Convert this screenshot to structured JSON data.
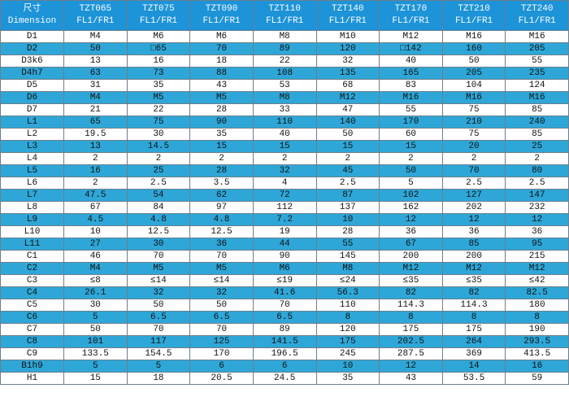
{
  "header": [
    [
      "尺寸",
      "Dimension"
    ],
    [
      "TZT065",
      "FL1/FR1"
    ],
    [
      "TZT075",
      "FL1/FR1"
    ],
    [
      "TZT090",
      "FL1/FR1"
    ],
    [
      "TZT110",
      "FL1/FR1"
    ],
    [
      "TZT140",
      "FL1/FR1"
    ],
    [
      "TZT170",
      "FL1/FR1"
    ],
    [
      "TZT210",
      "FL1/FR1"
    ],
    [
      "TZT240",
      "FL1/FR1"
    ]
  ],
  "rows": [
    [
      "D1",
      "M4",
      "M6",
      "M6",
      "M8",
      "M10",
      "M12",
      "M16",
      "M16"
    ],
    [
      "D2",
      "50",
      "□65",
      "70",
      "89",
      "120",
      "□142",
      "160",
      "205"
    ],
    [
      "D3k6",
      "13",
      "16",
      "18",
      "22",
      "32",
      "40",
      "50",
      "55"
    ],
    [
      "D4h7",
      "63",
      "73",
      "88",
      "108",
      "135",
      "165",
      "205",
      "235"
    ],
    [
      "D5",
      "31",
      "35",
      "43",
      "53",
      "68",
      "83",
      "104",
      "124"
    ],
    [
      "D6",
      "M4",
      "M5",
      "M5",
      "M8",
      "M12",
      "M16",
      "M16",
      "M16"
    ],
    [
      "D7",
      "21",
      "22",
      "28",
      "33",
      "47",
      "55",
      "75",
      "85"
    ],
    [
      "L1",
      "65",
      "75",
      "90",
      "110",
      "140",
      "170",
      "210",
      "240"
    ],
    [
      "L2",
      "19.5",
      "30",
      "35",
      "40",
      "50",
      "60",
      "75",
      "85"
    ],
    [
      "L3",
      "13",
      "14.5",
      "15",
      "15",
      "15",
      "15",
      "20",
      "25"
    ],
    [
      "L4",
      "2",
      "2",
      "2",
      "2",
      "2",
      "2",
      "2",
      "2"
    ],
    [
      "L5",
      "16",
      "25",
      "28",
      "32",
      "45",
      "50",
      "70",
      "80"
    ],
    [
      "L6",
      "2",
      "2.5",
      "3.5",
      "4",
      "2.5",
      "5",
      "2.5",
      "2.5"
    ],
    [
      "L7",
      "47.5",
      "54",
      "62",
      "72",
      "87",
      "102",
      "127",
      "147"
    ],
    [
      "L8",
      "67",
      "84",
      "97",
      "112",
      "137",
      "162",
      "202",
      "232"
    ],
    [
      "L9",
      "4.5",
      "4.8",
      "4.8",
      "7.2",
      "10",
      "12",
      "12",
      "12"
    ],
    [
      "L10",
      "10",
      "12.5",
      "12.5",
      "19",
      "28",
      "36",
      "36",
      "36"
    ],
    [
      "L11",
      "27",
      "30",
      "36",
      "44",
      "55",
      "67",
      "85",
      "95"
    ],
    [
      "C1",
      "46",
      "70",
      "70",
      "90",
      "145",
      "200",
      "200",
      "215"
    ],
    [
      "C2",
      "M4",
      "M5",
      "M5",
      "M6",
      "M8",
      "M12",
      "M12",
      "M12"
    ],
    [
      "C3",
      "≤8",
      "≤14",
      "≤14",
      "≤19",
      "≤24",
      "≤35",
      "≤35",
      "≤42"
    ],
    [
      "C4",
      "26.1",
      "32",
      "32",
      "41.6",
      "56.3",
      "82",
      "82",
      "82.5"
    ],
    [
      "C5",
      "30",
      "50",
      "50",
      "70",
      "110",
      "114.3",
      "114.3",
      "180"
    ],
    [
      "C6",
      "5",
      "6.5",
      "6.5",
      "6.5",
      "8",
      "8",
      "8",
      "8"
    ],
    [
      "C7",
      "50",
      "70",
      "70",
      "89",
      "120",
      "175",
      "175",
      "190"
    ],
    [
      "C8",
      "101",
      "117",
      "125",
      "141.5",
      "175",
      "202.5",
      "264",
      "293.5"
    ],
    [
      "C9",
      "133.5",
      "154.5",
      "170",
      "196.5",
      "245",
      "287.5",
      "369",
      "413.5"
    ],
    [
      "B1h9",
      "5",
      "5",
      "6",
      "6",
      "10",
      "12",
      "14",
      "16"
    ],
    [
      "H1",
      "15",
      "18",
      "20.5",
      "24.5",
      "35",
      "43",
      "53.5",
      "59"
    ]
  ]
}
